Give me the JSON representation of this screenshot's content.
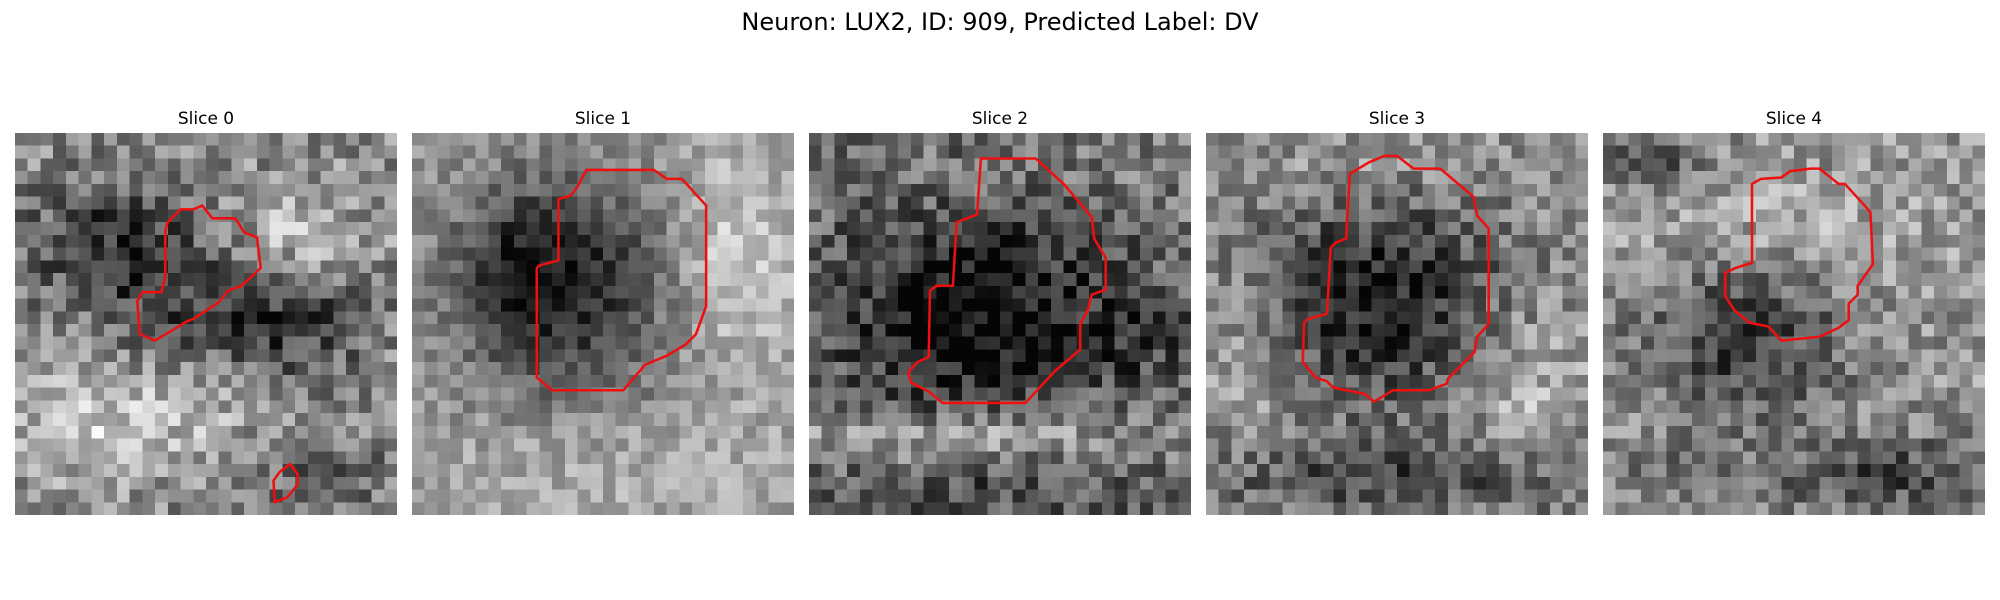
{
  "figure": {
    "title": "Neuron: LUX2, ID: 909, Predicted Label: DV"
  },
  "contour_color": "#ee1010",
  "colormap": "grayscale",
  "slices": [
    {
      "title": "Slice 0"
    },
    {
      "title": "Slice 1"
    },
    {
      "title": "Slice 2"
    },
    {
      "title": "Slice 3"
    },
    {
      "title": "Slice 4"
    }
  ]
}
